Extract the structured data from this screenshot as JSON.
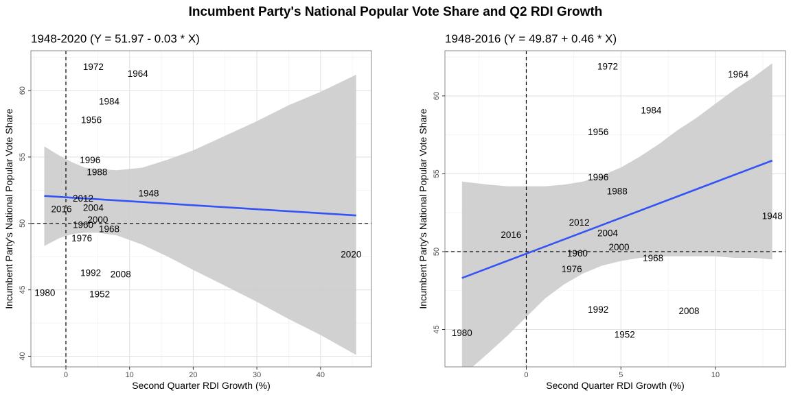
{
  "title": "Incumbent Party's National Popular Vote Share and Q2 RDI Growth",
  "colors": {
    "fit_line": "#3353f5",
    "ribbon": "#cccccc",
    "grid_major": "#e3e3e3",
    "grid_minor": "#f2f2f2",
    "panel_border": "#8a8a8a",
    "reference_line": "#000000"
  },
  "chart_data": [
    {
      "type": "scatter",
      "title": "1948-2020 (Y = 51.97 - 0.03 * X)",
      "xlabel": "Second Quarter RDI Growth (%)",
      "ylabel": "Incumbent Party's National Popular Vote Share",
      "xlim": [
        -5.5,
        48.0
      ],
      "ylim": [
        39.2,
        63.0
      ],
      "xticks": [
        0,
        10,
        20,
        30,
        40
      ],
      "yticks": [
        40,
        45,
        50,
        55,
        60
      ],
      "grid": true,
      "reference_lines": {
        "x": 0,
        "y": 50
      },
      "fit": {
        "intercept": 51.97,
        "slope": -0.03,
        "x_range": [
          -3.4,
          45.6
        ]
      },
      "ribbon": {
        "x": [
          -3.4,
          -1,
          1,
          3,
          5,
          8,
          12,
          16,
          20,
          25,
          30,
          35,
          40,
          45.6
        ],
        "lower": [
          48.3,
          48.9,
          49.2,
          49.3,
          49.3,
          49.1,
          48.4,
          47.5,
          46.5,
          45.3,
          44.1,
          42.8,
          41.6,
          40.1
        ],
        "upper": [
          55.8,
          55.1,
          54.6,
          54.2,
          54.1,
          54.0,
          54.2,
          54.8,
          55.5,
          56.6,
          57.7,
          58.9,
          59.9,
          61.2
        ]
      },
      "points": [
        {
          "label": "1972",
          "x": 4.3,
          "y": 61.8
        },
        {
          "label": "1964",
          "x": 11.3,
          "y": 61.3
        },
        {
          "label": "1984",
          "x": 6.8,
          "y": 59.2
        },
        {
          "label": "1956",
          "x": 4.0,
          "y": 57.8
        },
        {
          "label": "1996",
          "x": 3.8,
          "y": 54.8
        },
        {
          "label": "1988",
          "x": 4.9,
          "y": 53.9
        },
        {
          "label": "1948",
          "x": 13.0,
          "y": 52.3
        },
        {
          "label": "2012",
          "x": 2.7,
          "y": 51.9
        },
        {
          "label": "2004",
          "x": 4.3,
          "y": 51.2
        },
        {
          "label": "2016",
          "x": -0.7,
          "y": 51.1
        },
        {
          "label": "2000",
          "x": 5.0,
          "y": 50.3
        },
        {
          "label": "1960",
          "x": 2.7,
          "y": 49.9
        },
        {
          "label": "1968",
          "x": 6.8,
          "y": 49.6
        },
        {
          "label": "1976",
          "x": 2.5,
          "y": 48.9
        },
        {
          "label": "2020",
          "x": 44.8,
          "y": 47.7
        },
        {
          "label": "1992",
          "x": 3.9,
          "y": 46.3
        },
        {
          "label": "2008",
          "x": 8.6,
          "y": 46.2
        },
        {
          "label": "1980",
          "x": -3.3,
          "y": 44.8
        },
        {
          "label": "1952",
          "x": 5.3,
          "y": 44.7
        }
      ]
    },
    {
      "type": "scatter",
      "title": "1948-2016 (Y = 49.87 + 0.46 * X)",
      "xlabel": "Second Quarter RDI Growth (%)",
      "ylabel": "Incumbent Party's National Popular Vote Share",
      "xlim": [
        -4.3,
        13.7
      ],
      "ylim": [
        42.6,
        62.9
      ],
      "xticks": [
        0,
        5,
        10
      ],
      "yticks": [
        45,
        50,
        55,
        60
      ],
      "grid": true,
      "reference_lines": {
        "x": 0,
        "y": 50
      },
      "fit": {
        "intercept": 49.87,
        "slope": 0.46,
        "x_range": [
          -3.4,
          13.0
        ]
      },
      "ribbon": {
        "x": [
          -3.4,
          -2,
          -1,
          0,
          1,
          2,
          3,
          4,
          5,
          6,
          7,
          8,
          9,
          10,
          11,
          12,
          13
        ],
        "lower": [
          42.0,
          43.5,
          44.6,
          45.8,
          47.0,
          47.9,
          48.6,
          49.1,
          49.4,
          49.6,
          49.7,
          49.7,
          49.7,
          49.7,
          49.6,
          49.6,
          49.5
        ],
        "upper": [
          54.5,
          54.3,
          54.2,
          54.2,
          54.2,
          54.3,
          54.5,
          54.9,
          55.4,
          56.1,
          56.9,
          57.8,
          58.6,
          59.5,
          60.4,
          61.2,
          62.1
        ]
      },
      "points": [
        {
          "label": "1972",
          "x": 4.3,
          "y": 61.9
        },
        {
          "label": "1964",
          "x": 11.2,
          "y": 61.4
        },
        {
          "label": "1984",
          "x": 6.6,
          "y": 59.1
        },
        {
          "label": "1956",
          "x": 3.8,
          "y": 57.7
        },
        {
          "label": "1996",
          "x": 3.8,
          "y": 54.8
        },
        {
          "label": "1988",
          "x": 4.8,
          "y": 53.9
        },
        {
          "label": "1948",
          "x": 13.0,
          "y": 52.3
        },
        {
          "label": "2012",
          "x": 2.8,
          "y": 51.9
        },
        {
          "label": "2004",
          "x": 4.3,
          "y": 51.2
        },
        {
          "label": "2016",
          "x": -0.8,
          "y": 51.1
        },
        {
          "label": "2000",
          "x": 4.9,
          "y": 50.3
        },
        {
          "label": "1960",
          "x": 2.7,
          "y": 49.9
        },
        {
          "label": "1968",
          "x": 6.7,
          "y": 49.6
        },
        {
          "label": "1976",
          "x": 2.4,
          "y": 48.9
        },
        {
          "label": "1992",
          "x": 3.8,
          "y": 46.3
        },
        {
          "label": "2008",
          "x": 8.6,
          "y": 46.2
        },
        {
          "label": "1980",
          "x": -3.4,
          "y": 44.8
        },
        {
          "label": "1952",
          "x": 5.2,
          "y": 44.7
        }
      ]
    }
  ]
}
